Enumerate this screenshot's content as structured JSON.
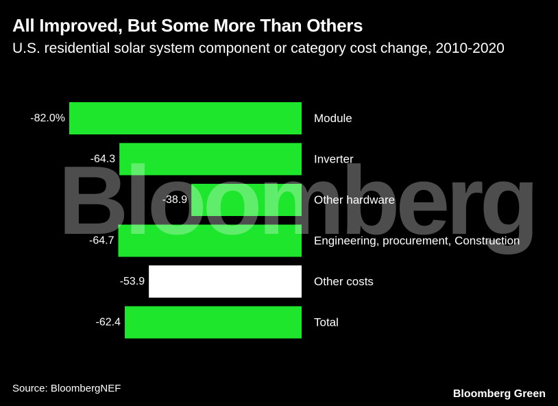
{
  "header": {
    "title": "All Improved, But Some More Than Others",
    "subtitle": "U.S. residential solar system component or category cost change, 2010-2020"
  },
  "chart_data": {
    "type": "bar",
    "orientation": "horizontal",
    "categories": [
      "Module",
      "Inverter",
      "Other hardware",
      "Engineering, procurement, Construction",
      "Other costs",
      "Total"
    ],
    "values": [
      -82.0,
      -64.3,
      -38.9,
      -64.7,
      -53.9,
      -62.4
    ],
    "data_labels": [
      "-82.0%",
      "-64.3",
      "-38.9",
      "-64.7",
      "-53.9",
      "-62.4"
    ],
    "colors": [
      "#1ee62d",
      "#1ee62d",
      "#1ee62d",
      "#1ee62d",
      "#ffffff",
      "#1ee62d"
    ],
    "xlim": [
      -82.0,
      0
    ],
    "grid": false,
    "legend": "none"
  },
  "watermark": "Bloomberg",
  "footer": {
    "source": "Source: BloombergNEF",
    "brand": "Bloomberg Green"
  }
}
